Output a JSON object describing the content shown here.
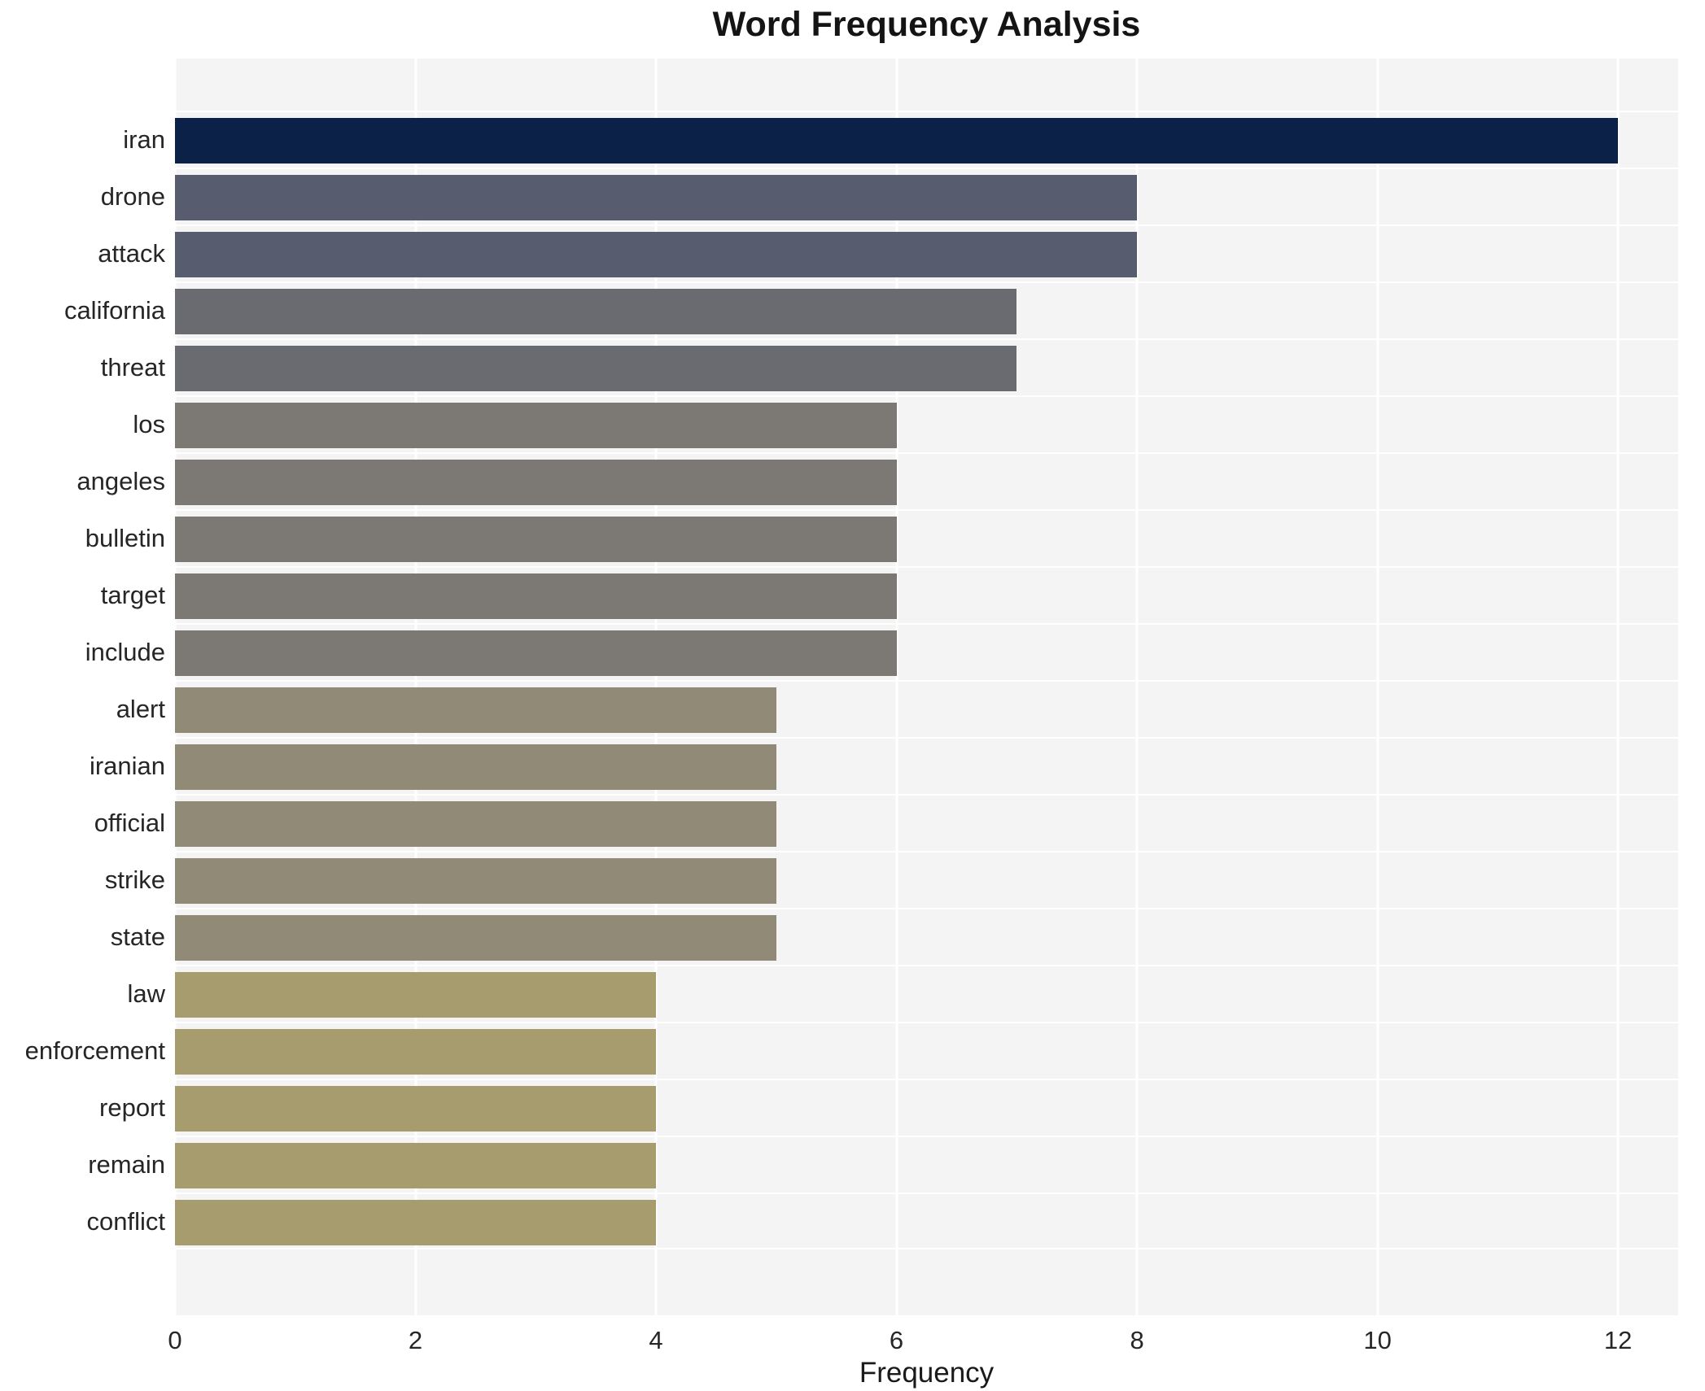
{
  "chart_data": {
    "type": "bar",
    "orientation": "horizontal",
    "title": "Word Frequency Analysis",
    "xlabel": "Frequency",
    "ylabel": "",
    "categories": [
      "iran",
      "drone",
      "attack",
      "california",
      "threat",
      "los",
      "angeles",
      "bulletin",
      "target",
      "include",
      "alert",
      "iranian",
      "official",
      "strike",
      "state",
      "law",
      "enforcement",
      "report",
      "remain",
      "conflict"
    ],
    "values": [
      12,
      8,
      8,
      7,
      7,
      6,
      6,
      6,
      6,
      6,
      5,
      5,
      5,
      5,
      5,
      4,
      4,
      4,
      4,
      4
    ],
    "bar_colors": [
      "#0c2148",
      "#575d6e",
      "#575d6e",
      "#696b71",
      "#696b71",
      "#7c7974",
      "#7c7974",
      "#7c7974",
      "#7c7974",
      "#7c7974",
      "#918a76",
      "#918a76",
      "#918a76",
      "#918a76",
      "#918a76",
      "#a69c6e",
      "#a69c6e",
      "#a69c6e",
      "#a69c6e",
      "#a69c6e"
    ],
    "value_color_map": {
      "12": "#0c2148",
      "8": "#575d6e",
      "7": "#696b71",
      "6": "#7c7974",
      "5": "#918a76",
      "4": "#a69c6e"
    },
    "xticks": [
      0,
      2,
      4,
      6,
      8,
      10,
      12
    ],
    "xlim": [
      0,
      12.5
    ],
    "grid": true,
    "legend": false,
    "plot_bg_color": "#f4f4f5",
    "grid_color": "#ffffff",
    "title_color": "#141414",
    "tick_label_color": "#262626"
  }
}
